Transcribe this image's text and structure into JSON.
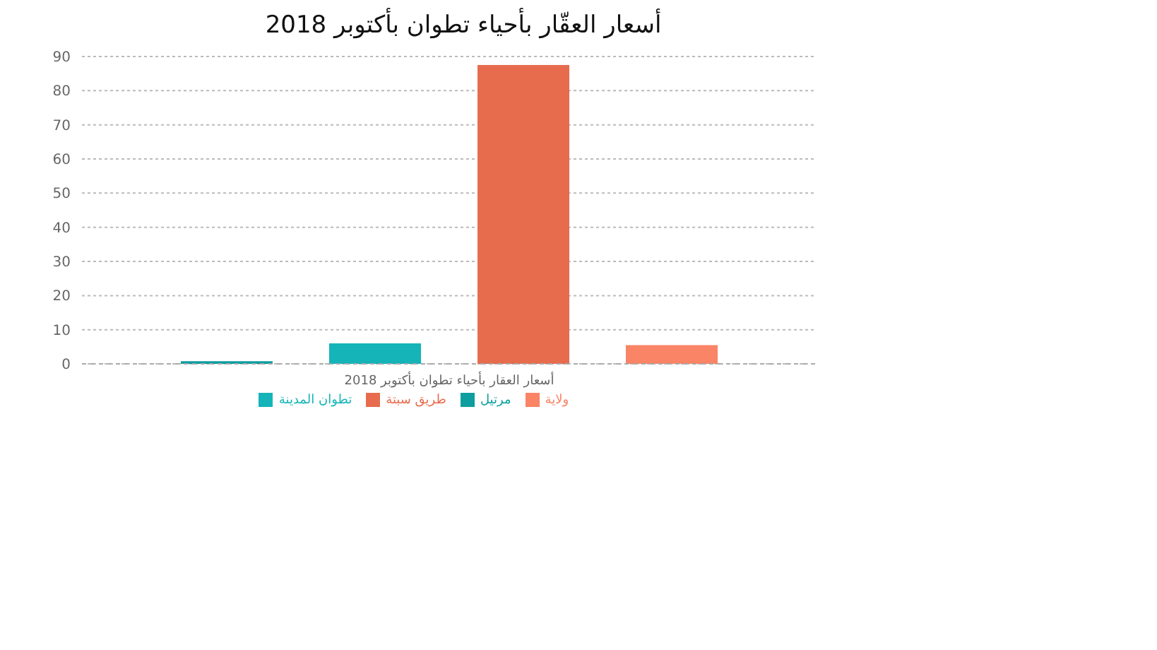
{
  "chart_data": {
    "type": "bar",
    "title": "أسعار العقّار بأحياء تطوان بأكتوبر 2018",
    "categories": [
      "أسعار العقار بأحياء تطوان بأكتوبر 2018"
    ],
    "series": [
      {
        "name": "مرتيل",
        "color": "#0e9ea0",
        "values": [
          0.8
        ]
      },
      {
        "name": "تطوان المدينة",
        "color": "#14b4b8",
        "values": [
          6
        ]
      },
      {
        "name": "طريق سبتة",
        "color": "#e76c4e",
        "values": [
          87.5
        ]
      },
      {
        "name": "ولاية",
        "color": "#f98466",
        "values": [
          5.5
        ]
      }
    ],
    "ylim": [
      0,
      90
    ],
    "yticks": [
      0,
      10,
      20,
      30,
      40,
      50,
      60,
      70,
      80,
      90
    ],
    "grid": "y",
    "legend": "bottom"
  }
}
